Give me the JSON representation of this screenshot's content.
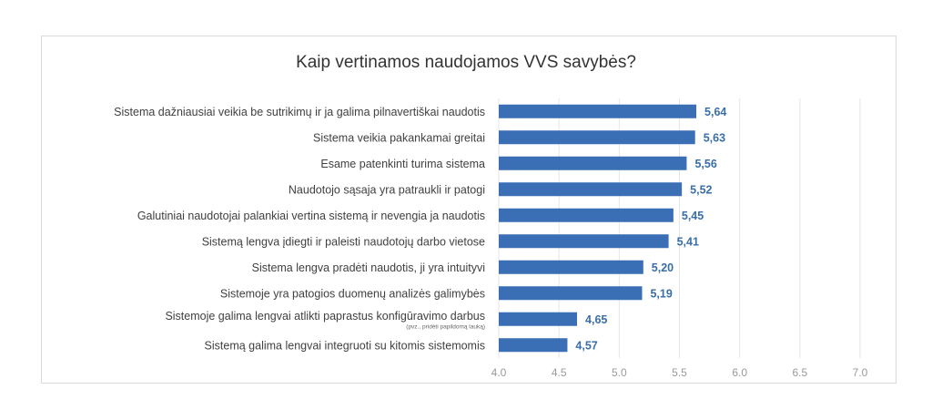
{
  "chart_data": {
    "type": "bar",
    "orientation": "horizontal",
    "title": "Kaip vertinamos naudojamos VVS savybės?",
    "categories": [
      "Sistema dažniausiai veikia be sutrikimų ir ja galima pilnavertiškai naudotis",
      "Sistema veikia pakankamai greitai",
      "Esame patenkinti turima sistema",
      "Naudotojo sąsaja yra patraukli ir patogi",
      "Galutiniai naudotojai palankiai vertina sistemą ir nevengia ja naudotis",
      "Sistemą lengva įdiegti ir paleisti naudotojų darbo vietose",
      "Sistema lengva pradėti naudotis, ji yra intuityvi",
      "Sistemoje yra patogios duomenų analizės galimybės",
      "Sistemoje galima lengvai atlikti paprastus konfigūravimo darbus",
      "Sistemą galima lengvai integruoti su kitomis sistemomis"
    ],
    "category_notes": [
      "",
      "",
      "",
      "",
      "",
      "",
      "",
      "",
      "(pvz., pridėti papildomą lauką)",
      ""
    ],
    "values": [
      5.64,
      5.63,
      5.56,
      5.52,
      5.45,
      5.41,
      5.2,
      5.19,
      4.65,
      4.57
    ],
    "value_labels": [
      "5,64",
      "5,63",
      "5,56",
      "5,52",
      "5,45",
      "5,41",
      "5,20",
      "5,19",
      "4,65",
      "4,57"
    ],
    "xlim": [
      4.0,
      7.0
    ],
    "ticks": [
      "4.0",
      "4.5",
      "5.0",
      "5.5",
      "6.0",
      "6.5",
      "7.0"
    ],
    "grid": true,
    "legend": "none",
    "bar_color": "#3a6eb5",
    "label_color": "#3a6ea8"
  }
}
